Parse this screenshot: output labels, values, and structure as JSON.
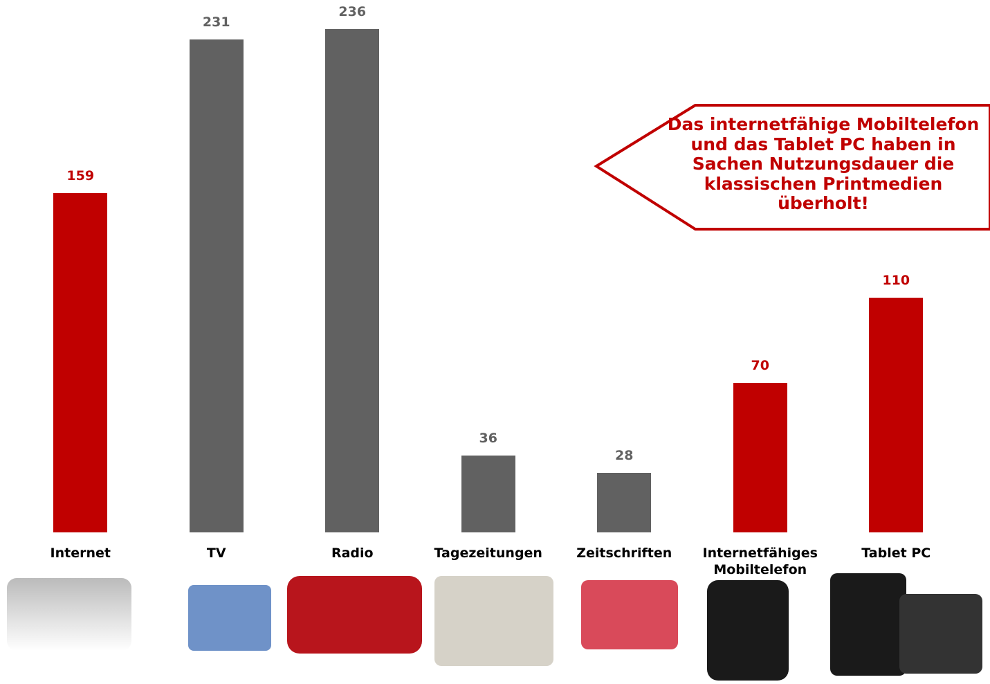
{
  "chart_data": {
    "type": "bar",
    "categories": [
      "Internet",
      "TV",
      "Radio",
      "Tagezeitungen",
      "Zeitschriften",
      "Internetfähiges Mobiltelefon",
      "Tablet PC"
    ],
    "values": [
      159,
      231,
      236,
      36,
      28,
      70,
      110
    ],
    "colors": [
      "#c00000",
      "#616161",
      "#616161",
      "#616161",
      "#616161",
      "#c00000",
      "#c00000"
    ],
    "annotation": "Das internetfähige Mobiltelefon und das Tablet PC haben in Sachen Nutzungsdauer die klassischen Printmedien überholt!"
  }
}
